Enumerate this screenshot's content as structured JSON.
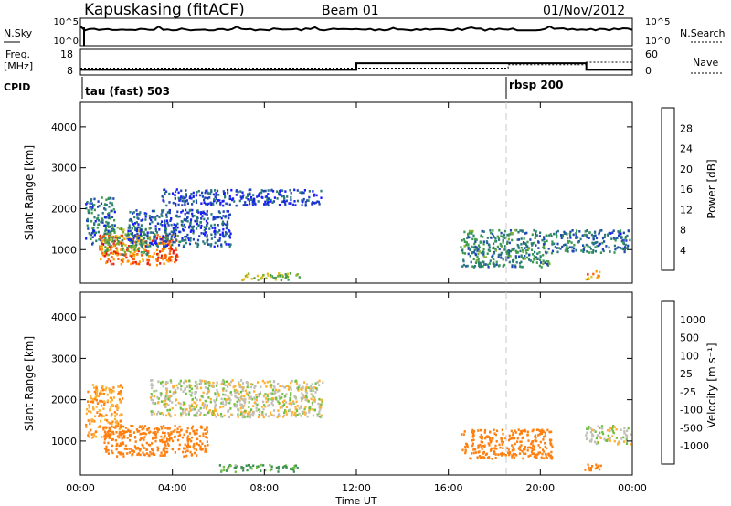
{
  "header": {
    "station": "Kapuskasing (fitACF)",
    "beam": "Beam 01",
    "date": "01/Nov/2012"
  },
  "nsky_panel": {
    "left_label": "N.Sky",
    "left_ticks": [
      "10^5",
      "10^0"
    ],
    "right_ticks": [
      "10^5",
      "10^0"
    ],
    "right_label": "N.Search"
  },
  "freq_panel": {
    "left_label_1": "Freq.",
    "left_label_2": "[MHz]",
    "left_ticks": [
      "18",
      "8"
    ],
    "right_ticks": [
      "60",
      "0"
    ],
    "right_label": "Nave",
    "freq_steps": [
      {
        "t": 0,
        "mhz": 10.0
      },
      {
        "t": 12.0,
        "mhz": 12.6
      },
      {
        "t": 22.0,
        "mhz": 10.0
      }
    ],
    "nave_steps": [
      {
        "t": 0,
        "v": 16
      },
      {
        "t": 18.6,
        "v": 24
      },
      {
        "t": 22.0,
        "v": 30
      }
    ]
  },
  "cpid": {
    "label": "CPID",
    "programs": [
      {
        "label": "tau (fast) 503",
        "start": 0.0
      },
      {
        "label": "rbsp 200",
        "start": 18.5
      }
    ]
  },
  "time_axis": {
    "ticks": [
      "00:00",
      "04:00",
      "08:00",
      "12:00",
      "16:00",
      "20:00",
      "00:00"
    ],
    "tick_hours": [
      0,
      4,
      8,
      12,
      16,
      20,
      24
    ],
    "xlabel": "Time UT"
  },
  "power_panel": {
    "ylabel": "Slant Range [km]",
    "yticks": [
      "1000",
      "2000",
      "3000",
      "4000"
    ],
    "ytick_values": [
      1000,
      2000,
      3000,
      4000
    ],
    "cbar_label": "Power [dB]",
    "cbar_ticks": [
      "4",
      "8",
      "12",
      "16",
      "20",
      "24",
      "28"
    ],
    "cbar_colors": [
      "#1a1aff",
      "#1e46b4",
      "#2a7a7a",
      "#3c9a50",
      "#80b030",
      "#e0c020",
      "#ff9a00",
      "#ff5a00",
      "#ee1a10"
    ]
  },
  "velocity_panel": {
    "ylabel": "Slant Range [km]",
    "yticks": [
      "1000",
      "2000",
      "3000",
      "4000"
    ],
    "ytick_values": [
      1000,
      2000,
      3000,
      4000
    ],
    "cbar_label": "Velocity [m s⁻¹]",
    "cbar_ticks": [
      "1000",
      "500",
      "100",
      "25",
      "-25",
      "-100",
      "-500",
      "-1000"
    ],
    "cbar_colors": [
      "#2030d0",
      "#2a6ab0",
      "#3a9050",
      "#70c040",
      "#c0c0b8",
      "#ffb030",
      "#ff8010",
      "#f04010",
      "#e01010"
    ]
  },
  "chart_data": [
    {
      "type": "heatmap",
      "title": "Power",
      "xlabel": "Time UT",
      "ylabel": "Slant Range [km]",
      "xlim": [
        0,
        24
      ],
      "ylim": [
        180,
        4600
      ],
      "colorbar": {
        "label": "Power [dB]",
        "range": [
          0,
          32
        ]
      },
      "features": [
        {
          "t0": 0.2,
          "t1": 1.5,
          "r0": 1100,
          "r1": 2300,
          "value": 8
        },
        {
          "t0": 0.8,
          "t1": 4.2,
          "r0": 650,
          "r1": 1400,
          "value": 26
        },
        {
          "t0": 1.0,
          "t1": 3.0,
          "r0": 900,
          "r1": 1600,
          "value": 14
        },
        {
          "t0": 2.0,
          "t1": 6.5,
          "r0": 1100,
          "r1": 2000,
          "value": 6
        },
        {
          "t0": 3.5,
          "t1": 10.5,
          "r0": 2100,
          "r1": 2500,
          "value": 5
        },
        {
          "t0": 7.0,
          "t1": 9.5,
          "r0": 280,
          "r1": 450,
          "value": 16
        },
        {
          "t0": 16.5,
          "t1": 20.5,
          "r0": 600,
          "r1": 1500,
          "value": 10
        },
        {
          "t0": 20.5,
          "t1": 23.9,
          "r0": 950,
          "r1": 1500,
          "value": 8
        },
        {
          "t0": 21.9,
          "t1": 22.6,
          "r0": 300,
          "r1": 500,
          "value": 24
        }
      ]
    },
    {
      "type": "heatmap",
      "title": "Velocity",
      "xlabel": "Time UT",
      "ylabel": "Slant Range [km]",
      "xlim": [
        0,
        24
      ],
      "ylim": [
        180,
        4600
      ],
      "colorbar": {
        "label": "Velocity [m s⁻¹]",
        "range": [
          -1000,
          1000
        ]
      },
      "features": [
        {
          "t0": 0.2,
          "t1": 1.8,
          "r0": 1100,
          "r1": 2400,
          "value": -100
        },
        {
          "t0": 1.0,
          "t1": 5.5,
          "r0": 650,
          "r1": 1400,
          "value": -300
        },
        {
          "t0": 3.0,
          "t1": 10.5,
          "r0": 1600,
          "r1": 2500,
          "value": 0
        },
        {
          "t0": 6.0,
          "t1": 9.5,
          "r0": 280,
          "r1": 450,
          "value": 80
        },
        {
          "t0": 16.5,
          "t1": 20.5,
          "r0": 600,
          "r1": 1300,
          "value": -300
        },
        {
          "t0": 21.9,
          "t1": 23.9,
          "r0": 950,
          "r1": 1400,
          "value": 0
        },
        {
          "t0": 21.9,
          "t1": 22.6,
          "r0": 300,
          "r1": 500,
          "value": -150
        }
      ]
    }
  ]
}
